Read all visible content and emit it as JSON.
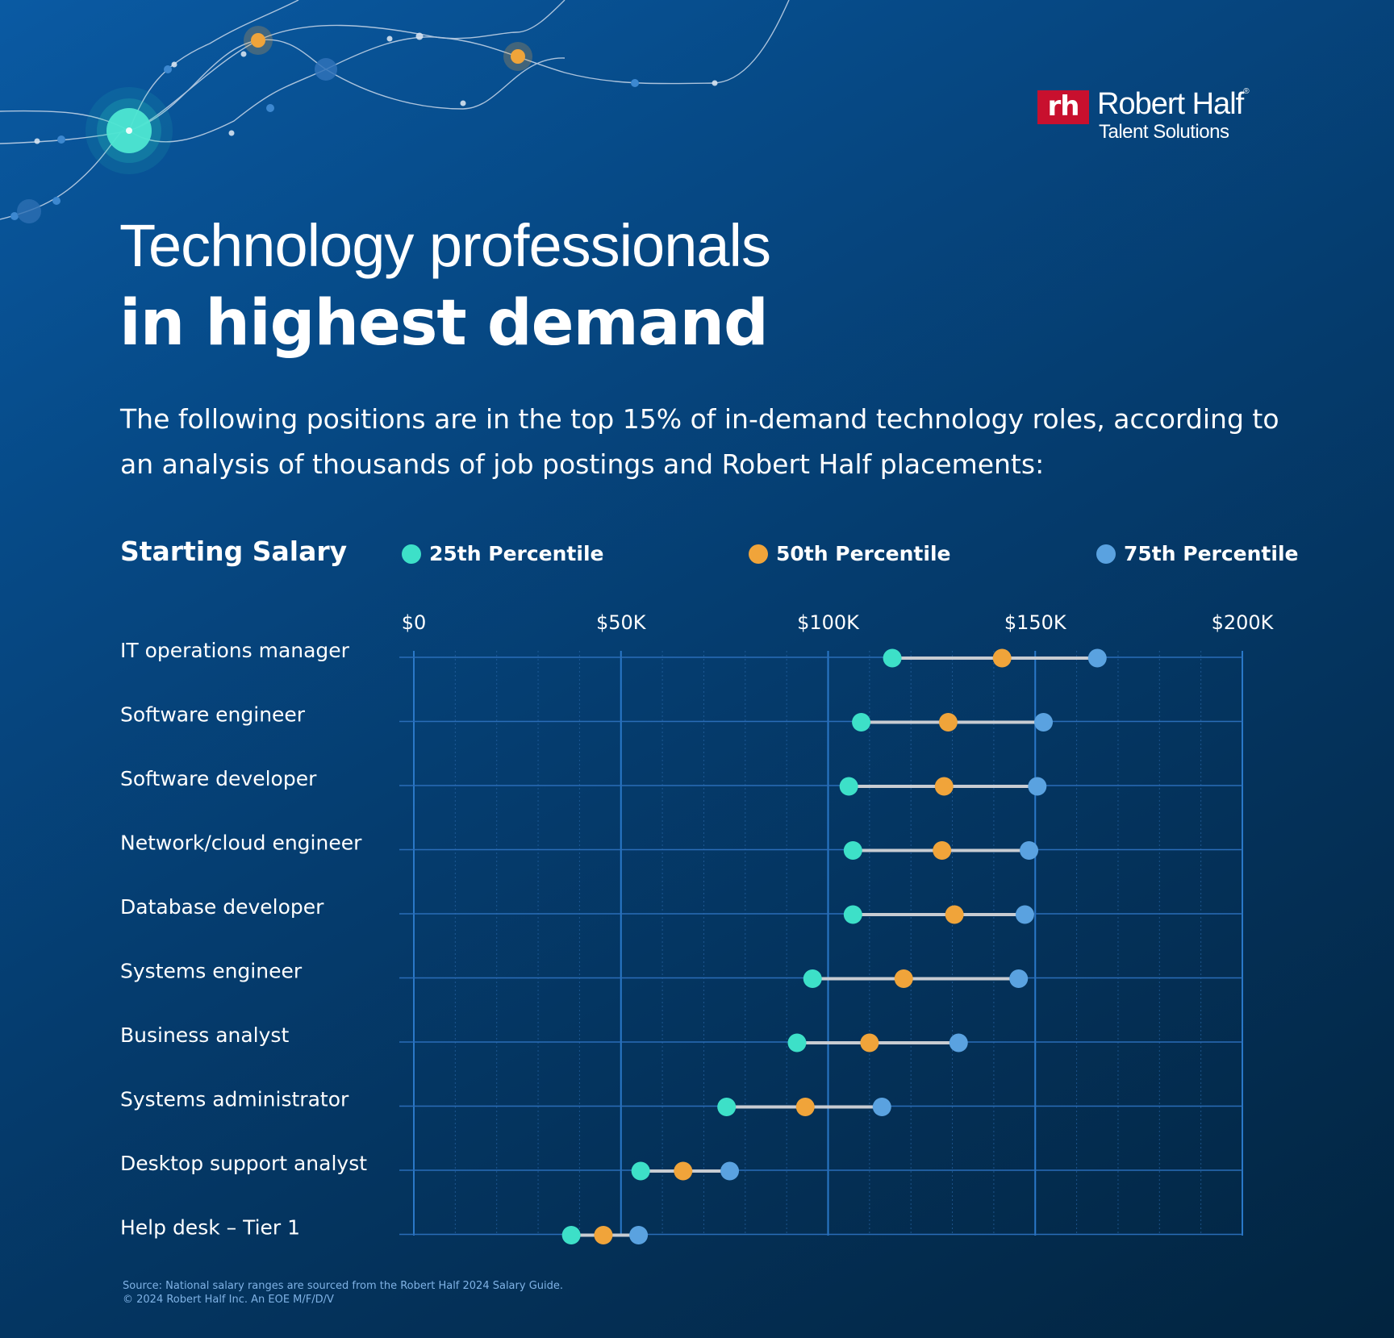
{
  "logo": {
    "mark": "rh",
    "name": "Robert Half",
    "reg": "®",
    "sub": "Talent Solutions"
  },
  "title": {
    "line1": "Technology professionals",
    "line2": "in highest demand"
  },
  "subtitle": "The following positions are in the top 15% of in-demand technology roles, according to an analysis of thousands of job postings and Robert Half placements:",
  "chart_label": "Starting Salary",
  "legend": [
    {
      "label": "25th Percentile",
      "color": "#3de0c8"
    },
    {
      "label": "50th Percentile",
      "color": "#f0a43a"
    },
    {
      "label": "75th Percentile",
      "color": "#5aa2e0"
    }
  ],
  "source": {
    "line1": "Source: National salary ranges are sourced from the Robert Half 2024 Salary Guide.",
    "line2": "© 2024 Robert Half Inc. An EOE M/F/D/V"
  },
  "chart_data": {
    "type": "dot-range",
    "xlim": [
      0,
      200000
    ],
    "ticks": [
      {
        "value": 0,
        "label": "$0"
      },
      {
        "value": 50000,
        "label": "$50K"
      },
      {
        "value": 100000,
        "label": "$100K"
      },
      {
        "value": 150000,
        "label": "$150K"
      },
      {
        "value": 200000,
        "label": "$200K"
      }
    ],
    "categories": [
      "IT operations manager",
      "Software engineer",
      "Software developer",
      "Network/cloud engineer",
      "Database developer",
      "Systems engineer",
      "Business analyst",
      "Systems administrator",
      "Desktop support analyst",
      "Help desk – Tier 1"
    ],
    "series": [
      {
        "name": "25th Percentile",
        "color": "#3de0c8",
        "values": [
          115500,
          108000,
          105000,
          106000,
          106000,
          96250,
          92500,
          75500,
          54750,
          38000
        ]
      },
      {
        "name": "50th Percentile",
        "color": "#f0a43a",
        "values": [
          142000,
          129000,
          128000,
          127500,
          130500,
          118250,
          110000,
          94500,
          65000,
          45750
        ]
      },
      {
        "name": "75th Percentile",
        "color": "#5aa2e0",
        "values": [
          165000,
          152000,
          150500,
          148500,
          147500,
          146000,
          131500,
          113000,
          76250,
          54250
        ]
      }
    ],
    "grid": true,
    "legend_position": "top"
  }
}
